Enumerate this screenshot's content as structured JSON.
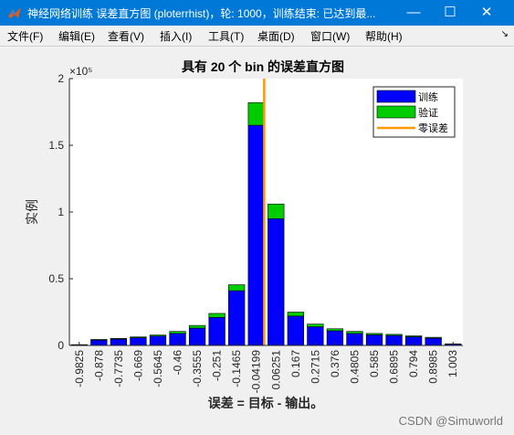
{
  "window": {
    "title": "神经网络训练 误差直方图 (ploterrhist)，轮: 1000，训练结束: 已达到最...",
    "minimize_icon": "minimize-icon",
    "maximize_icon": "maximize-icon",
    "close_icon": "close-icon"
  },
  "menu": {
    "items": [
      "文件(F)",
      "编辑(E)",
      "查看(V)",
      "插入(I)",
      "工具(T)",
      "桌面(D)",
      "窗口(W)",
      "帮助(H)"
    ],
    "arrow": "↘"
  },
  "chart_data": {
    "type": "bar",
    "title": "具有 20 个 bin 的误差直方图",
    "xlabel": "误差 = 目标 - 输出。",
    "ylabel": "实例",
    "y_exponent_label": "×10⁵",
    "ylim": [
      0,
      200000
    ],
    "y_ticks": [
      0,
      50000,
      100000,
      150000,
      200000
    ],
    "y_tick_labels": [
      "0",
      "0.5",
      "1",
      "1.5",
      "2"
    ],
    "categories": [
      "-0.9825",
      "-0.878",
      "-0.7735",
      "-0.669",
      "-0.5645",
      "-0.46",
      "-0.3555",
      "-0.251",
      "-0.1465",
      "-0.04199",
      "0.06251",
      "0.167",
      "0.2715",
      "0.376",
      "0.4805",
      "0.585",
      "0.6895",
      "0.794",
      "0.8985",
      "1.003"
    ],
    "series": [
      {
        "name": "训练",
        "color": "#0000ff",
        "values": [
          500,
          4000,
          4800,
          5800,
          7000,
          9000,
          13000,
          21000,
          41000,
          165000,
          95000,
          22000,
          14000,
          11000,
          9000,
          8000,
          7500,
          6500,
          5500,
          1000
        ]
      },
      {
        "name": "验证",
        "color": "#00cc00",
        "values": [
          100,
          500,
          500,
          600,
          800,
          1500,
          2000,
          3000,
          4500,
          17000,
          11000,
          3000,
          2000,
          1500,
          1500,
          1000,
          800,
          700,
          600,
          200
        ]
      }
    ],
    "zero_line": {
      "name": "零误差",
      "color": "#ff9900",
      "x": 0
    },
    "legend_position": "top-right",
    "grid": false
  },
  "watermark": "CSDN @Simuworld"
}
